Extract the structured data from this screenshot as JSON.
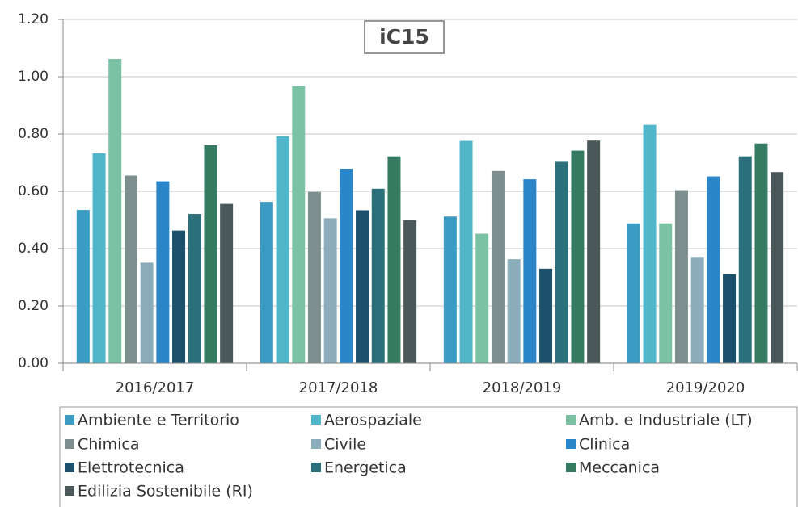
{
  "chart_data": {
    "type": "bar",
    "title": "iC15",
    "categories": [
      "2016/2017",
      "2017/2018",
      "2018/2019",
      "2019/2020"
    ],
    "series": [
      {
        "name": "Ambiente e Territorio",
        "color": "#3b9bc3",
        "values": [
          0.535,
          0.563,
          0.512,
          0.488
        ]
      },
      {
        "name": "Aerospaziale",
        "color": "#4fb7c9",
        "values": [
          0.733,
          0.792,
          0.776,
          0.832
        ]
      },
      {
        "name": "Amb. e Industriale (LT)",
        "color": "#7bc2a5",
        "values": [
          1.062,
          0.967,
          0.452,
          0.488
        ]
      },
      {
        "name": "Chimica",
        "color": "#7e8e8e",
        "values": [
          0.655,
          0.598,
          0.671,
          0.604
        ]
      },
      {
        "name": "Civile",
        "color": "#8badbb",
        "values": [
          0.351,
          0.506,
          0.363,
          0.371
        ]
      },
      {
        "name": "Clinica",
        "color": "#2a86c8",
        "values": [
          0.635,
          0.679,
          0.642,
          0.652
        ]
      },
      {
        "name": "Elettrotecnica",
        "color": "#1c506b",
        "values": [
          0.463,
          0.534,
          0.33,
          0.311
        ]
      },
      {
        "name": "Energetica",
        "color": "#2c707b",
        "values": [
          0.521,
          0.609,
          0.703,
          0.722
        ]
      },
      {
        "name": "Meccanica",
        "color": "#357b62",
        "values": [
          0.761,
          0.722,
          0.742,
          0.767
        ]
      },
      {
        "name": "Edilizia Sostenibile (RI)",
        "color": "#4a5859",
        "values": [
          0.556,
          0.5,
          0.777,
          0.667
        ]
      }
    ],
    "ylim": [
      0,
      1.2
    ],
    "yticks": [
      {
        "value": 0,
        "label": "0.00"
      },
      {
        "value": 0.2,
        "label": "0.20"
      },
      {
        "value": 0.4,
        "label": "0.40"
      },
      {
        "value": 0.6,
        "label": "0.60"
      },
      {
        "value": 0.8,
        "label": "0.80"
      },
      {
        "value": 1.0,
        "label": "1.00"
      },
      {
        "value": 1.2,
        "label": "1.20"
      }
    ],
    "grid": true
  }
}
